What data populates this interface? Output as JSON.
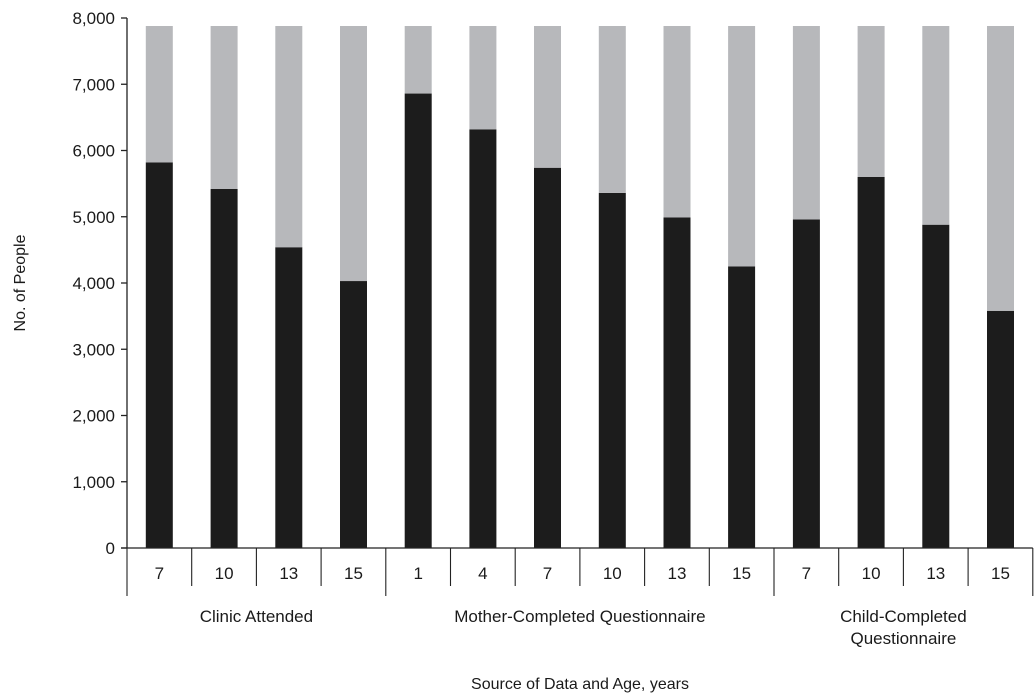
{
  "chart_data": {
    "type": "bar",
    "stacked": true,
    "title": "",
    "xlabel": "Source of Data and Age, years",
    "ylabel": "No. of People",
    "ylim": [
      0,
      8000
    ],
    "yticks": [
      0,
      1000,
      2000,
      3000,
      4000,
      5000,
      6000,
      7000,
      8000
    ],
    "ytick_labels": [
      "0",
      "1,000",
      "2,000",
      "3,000",
      "4,000",
      "5,000",
      "6,000",
      "7,000",
      "8,000"
    ],
    "categories": [
      "7",
      "10",
      "13",
      "15",
      "1",
      "4",
      "7",
      "10",
      "13",
      "15",
      "7",
      "10",
      "13",
      "15"
    ],
    "groups": [
      {
        "label_lines": [
          "Clinic Attended"
        ],
        "start": 0,
        "count": 4
      },
      {
        "label_lines": [
          "Mother-Completed Questionnaire"
        ],
        "start": 4,
        "count": 6
      },
      {
        "label_lines": [
          "Child-Completed",
          "Questionnaire"
        ],
        "start": 10,
        "count": 4
      }
    ],
    "total": 7880,
    "series": [
      {
        "color": "#1c1c1c",
        "values": [
          5820,
          5420,
          4540,
          4030,
          6860,
          6320,
          5740,
          5360,
          4990,
          4250,
          4960,
          5600,
          4880,
          3580
        ]
      },
      {
        "color": "#b7b8bb",
        "values": [
          2060,
          2460,
          3340,
          3850,
          1020,
          1560,
          2140,
          2520,
          2890,
          3630,
          2920,
          2280,
          3000,
          4300
        ]
      }
    ],
    "grid": false,
    "legend": "none"
  }
}
